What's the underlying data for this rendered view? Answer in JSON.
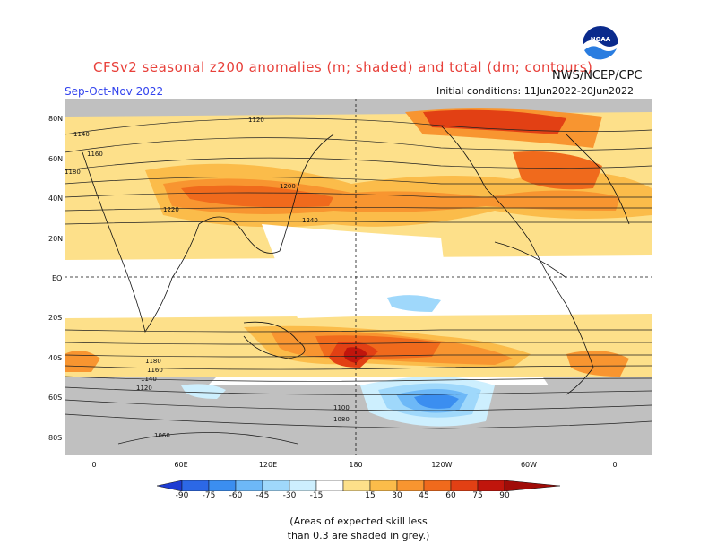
{
  "header": {
    "title": "CFSv2 seasonal z200 anomalies (m; shaded) and total (dm; contours)",
    "season": "Sep-Oct-Nov 2022",
    "org": "NWS/NCEP/CPC",
    "initial_conditions": "Initial conditions: 11Jun2022-20Jun2022"
  },
  "logo": {
    "text": "NOAA",
    "icon": "noaa-logo"
  },
  "map": {
    "lat_labels": [
      "80N",
      "60N",
      "40N",
      "20N",
      "EQ",
      "20S",
      "40S",
      "60S",
      "80S"
    ],
    "lon_labels": [
      "0",
      "60E",
      "120E",
      "180",
      "120W",
      "60W",
      "0"
    ],
    "contour_labels": [
      "1120",
      "1140",
      "1160",
      "1180",
      "1200",
      "1220",
      "1240",
      "1180",
      "1160",
      "1140",
      "1120",
      "1100",
      "1080",
      "1060"
    ],
    "colors": {
      "skill_mask": "#c0c0c0",
      "neg90": "#1e3cd2",
      "neg75": "#2c68e6",
      "neg60": "#3b8ef0",
      "neg45": "#6db8f7",
      "neg30": "#9fd8fb",
      "neg15": "#cdeffe",
      "pos15": "#fde08a",
      "pos30": "#fbbc4a",
      "pos45": "#f89530",
      "pos60": "#f06a1c",
      "pos75": "#e24014",
      "pos90": "#c0150c"
    }
  },
  "colorbar": {
    "ticks": [
      "-90",
      "-75",
      "-60",
      "-45",
      "-30",
      "-15",
      "15",
      "30",
      "45",
      "60",
      "75",
      "90"
    ]
  },
  "note": {
    "line1": "(Areas of expected skill less",
    "line2": "than 0.3 are shaded in grey.)"
  }
}
